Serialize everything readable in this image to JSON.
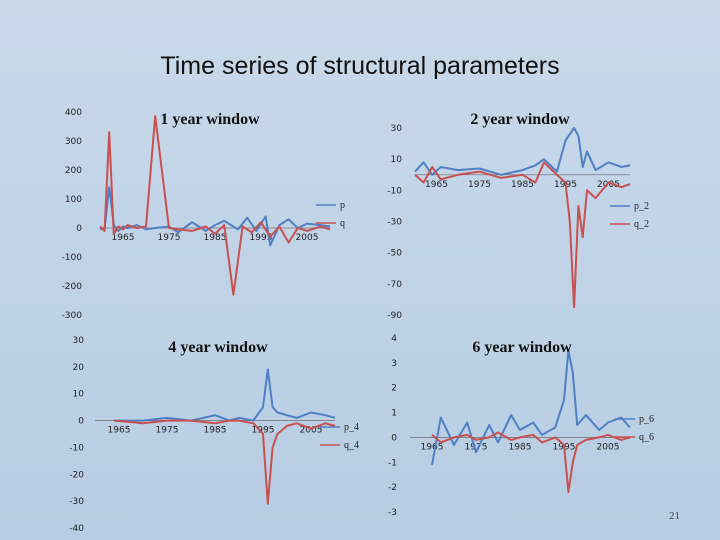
{
  "slide": {
    "title": "Time series of structural parameters",
    "number": "21"
  },
  "chart_data": [
    {
      "type": "line",
      "title": "1 year window",
      "x_range": [
        1960,
        2010
      ],
      "ylim": [
        -300,
        400
      ],
      "y_ticks": [
        -300,
        -200,
        -100,
        0,
        100,
        200,
        300,
        400
      ],
      "x_ticks": [
        "1965",
        "1975",
        "1985",
        "1995",
        "2005"
      ],
      "legend_position": "right",
      "series": [
        {
          "name": "p",
          "color": "#4f7fc4",
          "x": [
            1960,
            1961,
            1962,
            1963,
            1964,
            1965,
            1966,
            1968,
            1970,
            1972,
            1975,
            1977,
            1980,
            1983,
            1985,
            1987,
            1990,
            1992,
            1994,
            1996,
            1997,
            1999,
            2001,
            2003,
            2005,
            2008,
            2010
          ],
          "y": [
            -5,
            0,
            140,
            10,
            -10,
            5,
            0,
            10,
            -5,
            0,
            5,
            -15,
            20,
            -10,
            10,
            25,
            -5,
            35,
            -10,
            40,
            -60,
            10,
            30,
            0,
            15,
            10,
            5
          ]
        },
        {
          "name": "q",
          "color": "#c8504f",
          "x": [
            1960,
            1961,
            1962,
            1963,
            1964,
            1965,
            1966,
            1968,
            1970,
            1972,
            1975,
            1977,
            1980,
            1983,
            1985,
            1987,
            1989,
            1991,
            1993,
            1995,
            1997,
            1999,
            2001,
            2003,
            2005,
            2008,
            2010
          ],
          "y": [
            5,
            -10,
            330,
            -20,
            5,
            -5,
            10,
            0,
            5,
            385,
            0,
            -5,
            -10,
            5,
            -20,
            10,
            -230,
            5,
            -15,
            20,
            -30,
            5,
            -50,
            0,
            -10,
            5,
            -5
          ]
        }
      ]
    },
    {
      "type": "line",
      "title": "2 year window",
      "x_range": [
        1960,
        2010
      ],
      "ylim": [
        -90,
        30
      ],
      "y_ticks": [
        -90,
        -70,
        -50,
        -30,
        -10,
        10,
        30
      ],
      "x_ticks": [
        "1965",
        "1975",
        "1985",
        "1995",
        "2005"
      ],
      "legend_position": "right",
      "series": [
        {
          "name": "p_2",
          "color": "#4f7fc4",
          "x": [
            1960,
            1962,
            1964,
            1966,
            1970,
            1975,
            1980,
            1985,
            1988,
            1990,
            1993,
            1995,
            1997,
            1998,
            1999,
            2000,
            2002,
            2005,
            2008,
            2010
          ],
          "y": [
            2,
            8,
            0,
            5,
            3,
            4,
            0,
            3,
            6,
            10,
            2,
            22,
            30,
            25,
            5,
            15,
            3,
            8,
            5,
            6
          ]
        },
        {
          "name": "q_2",
          "color": "#c8504f",
          "x": [
            1960,
            1962,
            1964,
            1966,
            1970,
            1975,
            1980,
            1985,
            1988,
            1990,
            1993,
            1995,
            1996,
            1997,
            1998,
            1999,
            2000,
            2002,
            2005,
            2008,
            2010
          ],
          "y": [
            0,
            -5,
            5,
            -3,
            0,
            2,
            -2,
            0,
            -5,
            8,
            0,
            -5,
            -30,
            -85,
            -20,
            -40,
            -10,
            -15,
            -5,
            -8,
            -6
          ]
        }
      ]
    },
    {
      "type": "line",
      "title": "4 year window",
      "x_range": [
        1960,
        2010
      ],
      "ylim": [
        -40,
        30
      ],
      "y_ticks": [
        -40,
        -30,
        -20,
        -10,
        0,
        10,
        20,
        30
      ],
      "x_ticks": [
        "1965",
        "1975",
        "1985",
        "1995",
        "2005"
      ],
      "legend_position": "right",
      "series": [
        {
          "name": "p_4",
          "color": "#4f7fc4",
          "x": [
            1964,
            1970,
            1975,
            1980,
            1985,
            1988,
            1990,
            1993,
            1995,
            1996,
            1997,
            1998,
            2000,
            2002,
            2005,
            2008,
            2010
          ],
          "y": [
            0,
            0,
            1,
            0,
            2,
            0,
            1,
            0,
            5,
            19,
            5,
            3,
            2,
            1,
            3,
            2,
            1
          ]
        },
        {
          "name": "q_4",
          "color": "#c8504f",
          "x": [
            1964,
            1970,
            1975,
            1980,
            1985,
            1988,
            1990,
            1993,
            1995,
            1996,
            1997,
            1998,
            2000,
            2002,
            2005,
            2008,
            2010
          ],
          "y": [
            0,
            -1,
            0,
            0,
            -1,
            0,
            0,
            -1,
            -5,
            -31,
            -10,
            -5,
            -2,
            -1,
            -3,
            -1,
            -2
          ]
        }
      ]
    },
    {
      "type": "line",
      "title": "6 year window",
      "x_range": [
        1960,
        2010
      ],
      "ylim": [
        -3,
        4
      ],
      "y_ticks": [
        -3,
        -2,
        -1,
        0,
        1,
        2,
        3,
        4
      ],
      "x_ticks": [
        "1965",
        "1975",
        "1985",
        "1995",
        "2005"
      ],
      "legend_position": "right",
      "series": [
        {
          "name": "p_6",
          "color": "#4f7fc4",
          "x": [
            1965,
            1967,
            1970,
            1973,
            1975,
            1978,
            1980,
            1983,
            1985,
            1988,
            1990,
            1993,
            1995,
            1996,
            1997,
            1998,
            2000,
            2003,
            2005,
            2008,
            2010
          ],
          "y": [
            -1.1,
            0.8,
            -0.3,
            0.6,
            -0.6,
            0.5,
            -0.2,
            0.9,
            0.3,
            0.6,
            0.1,
            0.4,
            1.5,
            3.5,
            2.6,
            0.5,
            0.9,
            0.3,
            0.6,
            0.8,
            0.4
          ]
        },
        {
          "name": "q_6",
          "color": "#c8504f",
          "x": [
            1965,
            1967,
            1970,
            1973,
            1975,
            1978,
            1980,
            1983,
            1985,
            1988,
            1990,
            1993,
            1995,
            1996,
            1997,
            1998,
            2000,
            2003,
            2005,
            2008,
            2010
          ],
          "y": [
            0.1,
            -0.2,
            0.0,
            0.1,
            -0.1,
            0.0,
            0.2,
            -0.1,
            0.0,
            0.1,
            -0.2,
            0.0,
            -0.3,
            -2.2,
            -1.0,
            -0.3,
            -0.1,
            0.0,
            0.1,
            -0.1,
            0.0
          ]
        }
      ]
    }
  ]
}
